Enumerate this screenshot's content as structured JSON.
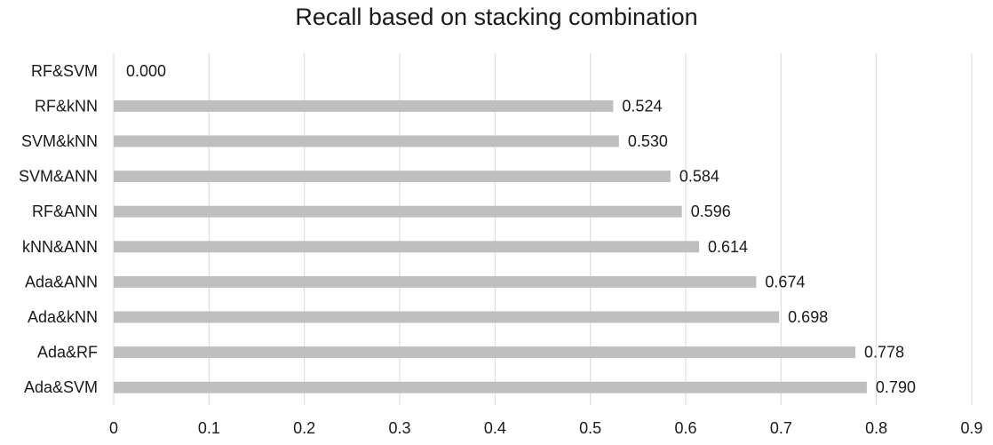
{
  "chart_data": {
    "type": "bar",
    "orientation": "horizontal",
    "title": "Recall based on stacking combination",
    "xlabel": "",
    "ylabel": "",
    "categories": [
      "RF&SVM",
      "RF&kNN",
      "SVM&kNN",
      "SVM&ANN",
      "RF&ANN",
      "kNN&ANN",
      "Ada&ANN",
      "Ada&kNN",
      "Ada&RF",
      "Ada&SVM"
    ],
    "values": [
      0.0,
      0.524,
      0.53,
      0.584,
      0.596,
      0.614,
      0.674,
      0.698,
      0.778,
      0.79
    ],
    "value_labels": [
      "0.000",
      "0.524",
      "0.530",
      "0.584",
      "0.596",
      "0.614",
      "0.674",
      "0.698",
      "0.778",
      "0.790"
    ],
    "xlim": [
      0,
      0.9
    ],
    "xticks": [
      0,
      0.1,
      0.2,
      0.3,
      0.4,
      0.5,
      0.6,
      0.7,
      0.8,
      0.9
    ],
    "xtick_labels": [
      "0",
      "0.1",
      "0.2",
      "0.3",
      "0.4",
      "0.5",
      "0.6",
      "0.7",
      "0.8",
      "0.9"
    ],
    "grid": "vertical",
    "legend": "none",
    "colors": {
      "bar": "#bfbfbf",
      "grid": "#d9d9d9",
      "text": "#1a1a1a"
    }
  }
}
